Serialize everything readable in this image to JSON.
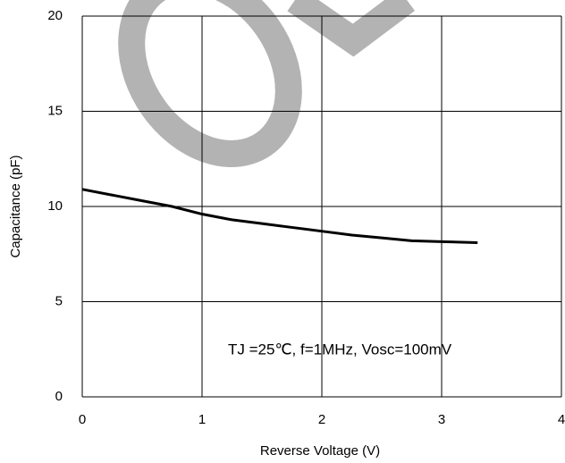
{
  "chart_data": {
    "type": "line",
    "x_label": "Reverse Voltage (V)",
    "y_label": "Capacitance (pF)",
    "annotation": "TJ =25℃, f=1MHz, Vosc=100mV",
    "x": [
      0,
      0.25,
      0.5,
      0.75,
      1,
      1.25,
      1.5,
      1.75,
      2,
      2.25,
      2.5,
      2.75,
      3,
      3.3
    ],
    "series": [
      {
        "color": "#000000",
        "values": [
          10.9,
          10.6,
          10.3,
          10.0,
          9.6,
          9.3,
          9.1,
          8.9,
          8.7,
          8.5,
          8.35,
          8.2,
          8.15,
          8.1
        ]
      }
    ],
    "xlim": [
      0,
      4
    ],
    "xticks": [
      0,
      1,
      2,
      3,
      4
    ],
    "ylim": [
      0,
      20
    ],
    "yticks": [
      0,
      5,
      10,
      15,
      20
    ],
    "grid": true
  }
}
